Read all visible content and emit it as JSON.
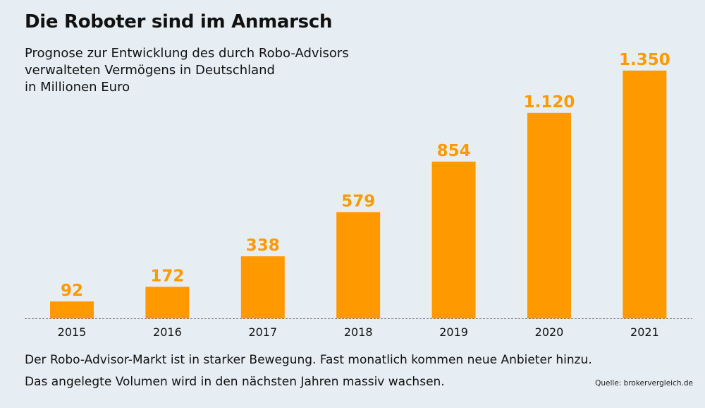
{
  "chart_data": {
    "type": "bar",
    "title": "Die Roboter sind im Anmarsch",
    "subtitle": [
      "Prognose zur Entwicklung des durch Robo-Advisors",
      "verwalteten Vermögens in Deutschland",
      "in Millionen Euro"
    ],
    "categories": [
      "2015",
      "2016",
      "2017",
      "2018",
      "2019",
      "2020",
      "2021"
    ],
    "values": [
      92,
      172,
      338,
      579,
      854,
      1120,
      1350
    ],
    "value_labels": [
      "92",
      "172",
      "338",
      "579",
      "854",
      "1.120",
      "1.350"
    ],
    "xlabel": "",
    "ylabel": "in Millionen Euro",
    "ylim": [
      0,
      1350
    ],
    "grid": false,
    "legend": "none",
    "bar_color": "#ff9900",
    "label_color": "#ff9900"
  },
  "footer": {
    "lines": [
      "Der Robo-Advisor-Markt ist in starker Bewegung. Fast monatlich kommen neue Anbieter hinzu.",
      "Das angelegte Volumen wird in den nächsten Jahren massiv wachsen."
    ],
    "source": "Quelle: brokervergleich.de"
  }
}
